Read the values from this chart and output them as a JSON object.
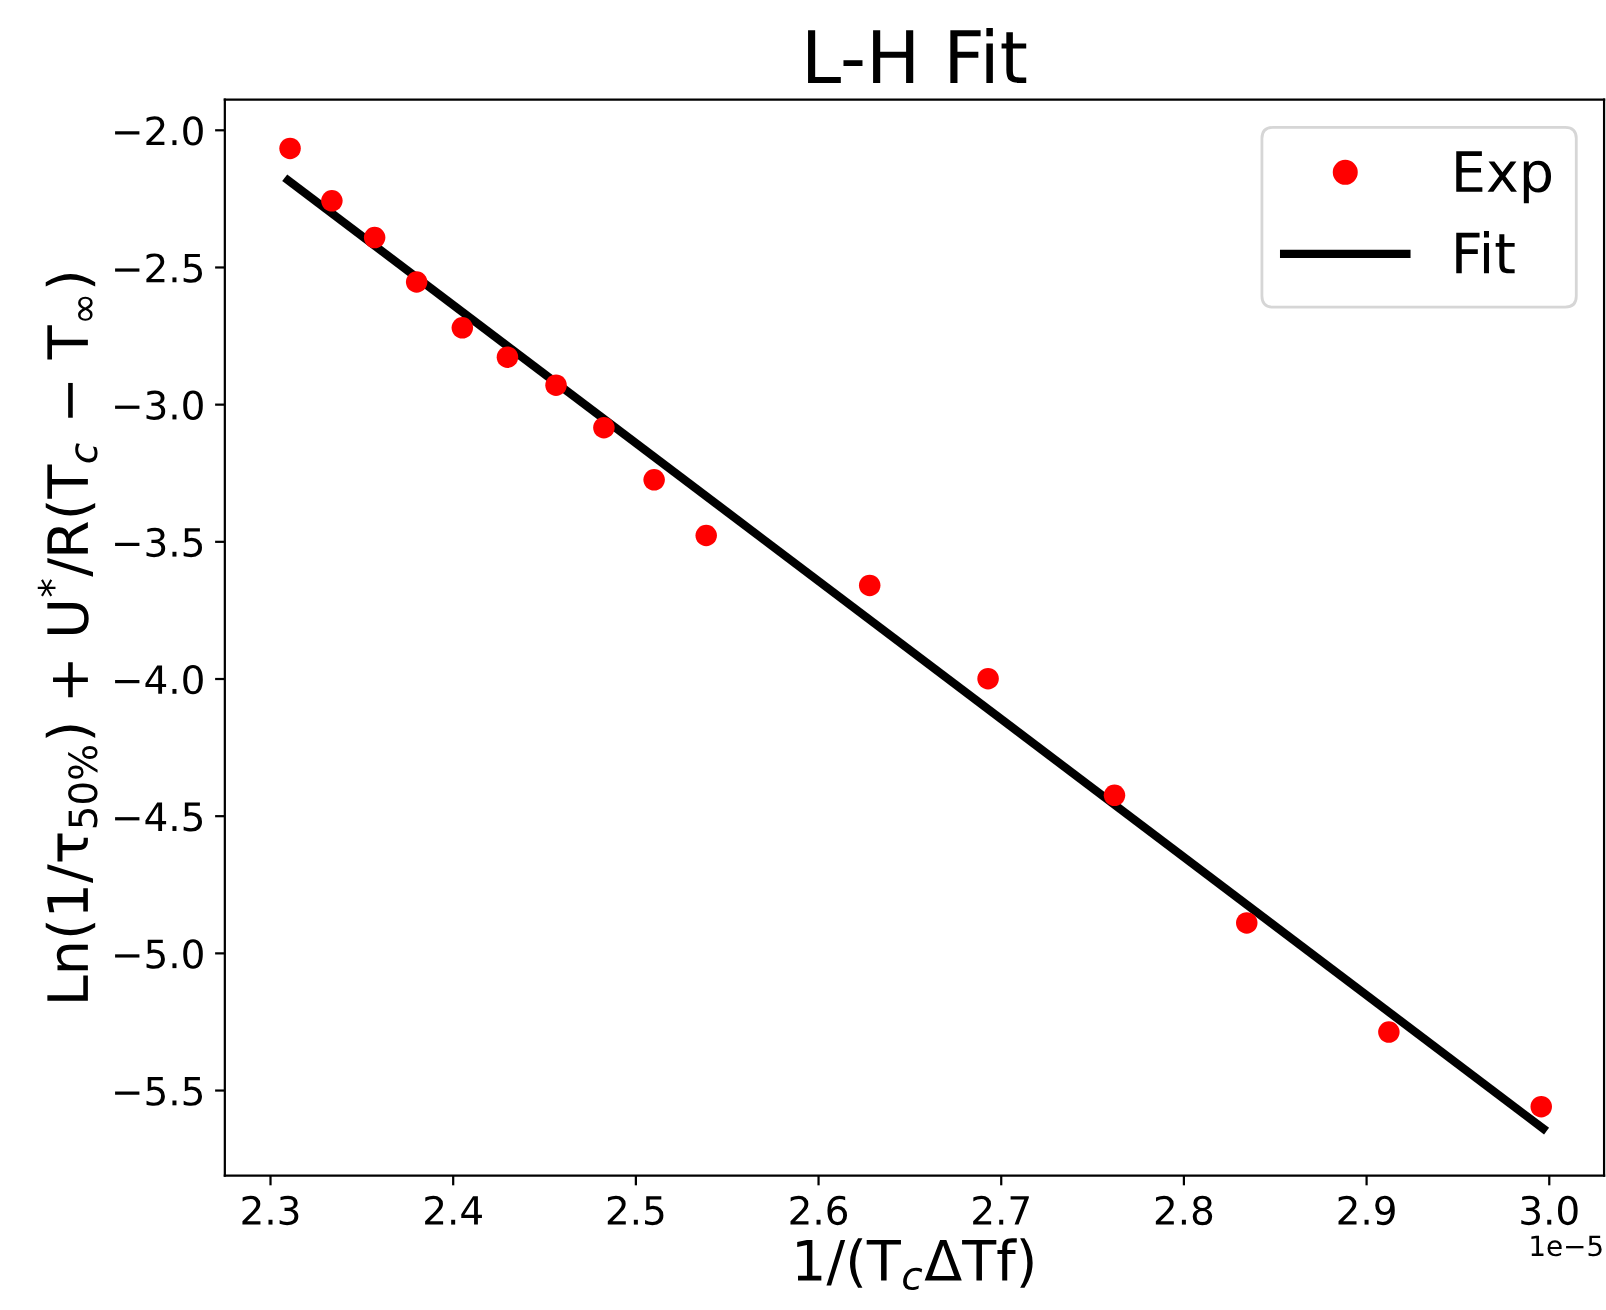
{
  "chart_data": {
    "type": "scatter",
    "title": "L-H Fit",
    "xlabel": "1/(T$_{c}$ΔTf)",
    "ylabel": "Ln(1/τ$_{50%}$) + U$^{*}$/R(T$_{c}$ − T$_{∞}$)",
    "series": [
      {
        "name": "Exp",
        "color": "#ff0000",
        "marker": "circle",
        "x": [
          2.3107,
          2.3336,
          2.357,
          2.38,
          2.405,
          2.4297,
          2.4563,
          2.4825,
          2.51,
          2.5385,
          2.628,
          2.6928,
          2.762,
          2.8344,
          2.9122,
          2.9956
        ],
        "values": [
          -2.066,
          -2.257,
          -2.391,
          -2.553,
          -2.72,
          -2.827,
          -2.929,
          -3.084,
          -3.274,
          -3.477,
          -3.659,
          -3.999,
          -4.424,
          -4.889,
          -5.287,
          -5.559
        ]
      },
      {
        "name": "Fit",
        "type": "line",
        "color": "#000000",
        "line_style": "solid",
        "x": [
          2.3096,
          2.9967
        ],
        "values": [
          -2.182,
          -5.639
        ]
      }
    ],
    "xlim": [
      2.275,
      3.03
    ],
    "xticks": [
      2.3,
      2.4,
      2.5,
      2.6,
      2.7,
      2.8,
      2.9,
      {
        "value": 3.0,
        "label": "3.0"
      }
    ],
    "ylim": [
      -5.81,
      -1.888
    ],
    "yticks": [
      {
        "value": -2.0,
        "label": "−2.0"
      },
      {
        "value": -2.5,
        "label": "−2.5"
      },
      {
        "value": -3.0,
        "label": "−3.0"
      },
      {
        "value": -3.5,
        "label": "−3.5"
      },
      {
        "value": -4.0,
        "label": "−4.0"
      },
      {
        "value": -4.5,
        "label": "−4.5"
      },
      {
        "value": -5.0,
        "label": "−5.0"
      },
      {
        "value": -5.5,
        "label": "−5.5"
      }
    ],
    "annotations": [
      "1e−5"
    ],
    "legend": "top right",
    "grid": false
  }
}
